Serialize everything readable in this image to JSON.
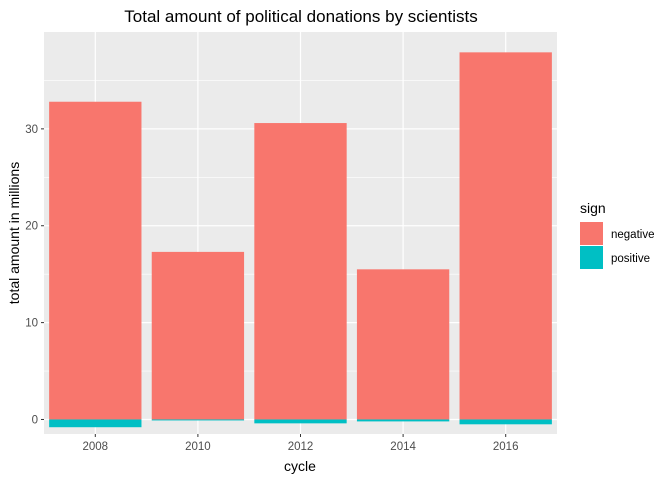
{
  "chart_data": {
    "type": "bar",
    "stacked": true,
    "title": "Total amount of political donations by scientists",
    "xlabel": "cycle",
    "ylabel": "total amount in millions",
    "categories": [
      "2008",
      "2010",
      "2012",
      "2014",
      "2016"
    ],
    "x_ticks": [
      "2008",
      "2010",
      "2012",
      "2014",
      "2016"
    ],
    "y_ticks": [
      0,
      10,
      20,
      30
    ],
    "ylim": [
      -1.5,
      40
    ],
    "grid": true,
    "legend": {
      "title": "sign",
      "position": "right",
      "entries": [
        "negative",
        "positive"
      ]
    },
    "series": [
      {
        "name": "negative",
        "color": "#F8766D",
        "values": [
          32.8,
          17.3,
          30.6,
          15.5,
          37.9
        ]
      },
      {
        "name": "positive",
        "color": "#00BFC4",
        "values": [
          -0.8,
          -0.1,
          -0.4,
          -0.2,
          -0.5
        ]
      }
    ],
    "colors": {
      "panel_bg": "#EBEBEB",
      "grid": "#FFFFFF",
      "text": "#4D4D4D",
      "title": "#000000"
    }
  }
}
